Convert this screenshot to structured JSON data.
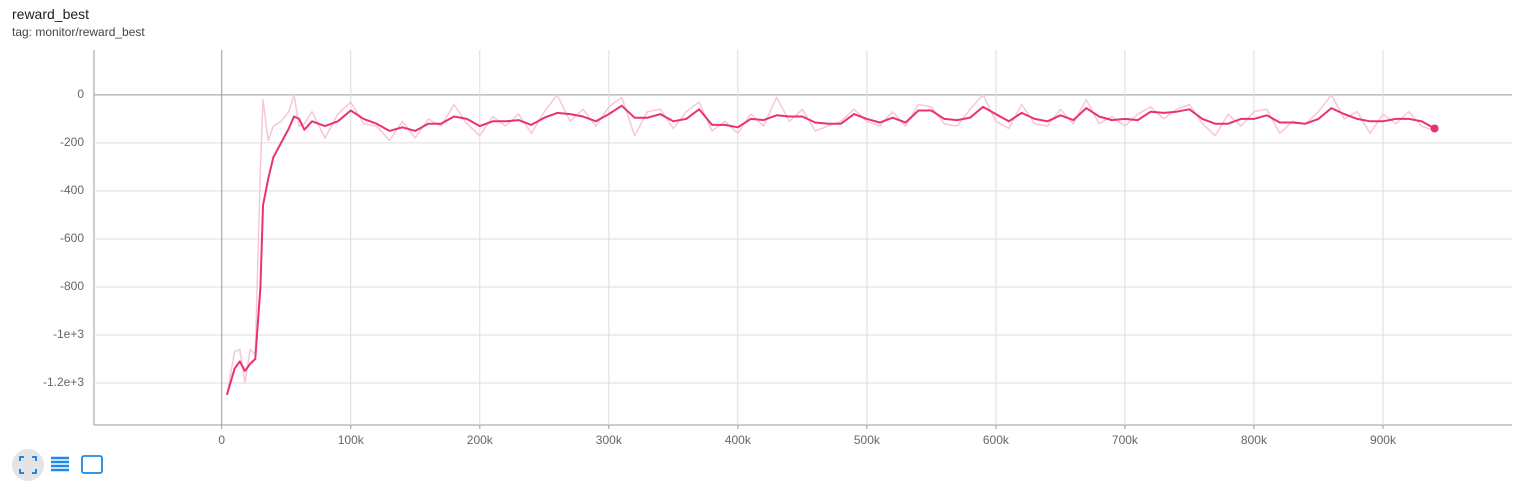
{
  "chart_data": {
    "type": "line",
    "title": "reward_best",
    "subtitle": "tag: monitor/reward_best",
    "x": [
      4000,
      10000,
      14000,
      18000,
      22000,
      26000,
      30000,
      32000,
      36000,
      40000,
      46000,
      52000,
      56000,
      60000,
      64000,
      70000,
      80000,
      90000,
      100000,
      110000,
      120000,
      130000,
      140000,
      150000,
      160000,
      170000,
      180000,
      190000,
      200000,
      210000,
      220000,
      230000,
      240000,
      250000,
      260000,
      270000,
      280000,
      290000,
      300000,
      310000,
      320000,
      330000,
      340000,
      350000,
      360000,
      370000,
      380000,
      390000,
      400000,
      410000,
      420000,
      430000,
      440000,
      450000,
      460000,
      470000,
      480000,
      490000,
      500000,
      510000,
      520000,
      530000,
      540000,
      550000,
      560000,
      570000,
      580000,
      590000,
      600000,
      610000,
      620000,
      630000,
      640000,
      650000,
      660000,
      670000,
      680000,
      690000,
      700000,
      710000,
      720000,
      730000,
      740000,
      750000,
      760000,
      770000,
      780000,
      790000,
      800000,
      810000,
      820000,
      830000,
      840000,
      850000,
      860000,
      870000,
      880000,
      890000,
      900000,
      910000,
      920000,
      930000,
      940000
    ],
    "series": [
      {
        "color": "#f8c6d7",
        "values": [
          -1250,
          -1070,
          -1060,
          -1200,
          -1060,
          -1080,
          -300,
          -20,
          -190,
          -130,
          -110,
          -70,
          0,
          -130,
          -120,
          -70,
          -180,
          -80,
          -30,
          -120,
          -130,
          -190,
          -110,
          -180,
          -100,
          -130,
          -40,
          -120,
          -170,
          -90,
          -130,
          -80,
          -160,
          -70,
          0,
          -110,
          -60,
          -130,
          -50,
          -10,
          -170,
          -70,
          -60,
          -140,
          -70,
          -30,
          -150,
          -110,
          -160,
          -80,
          -130,
          -10,
          -110,
          -60,
          -150,
          -130,
          -110,
          -60,
          -110,
          -130,
          -70,
          -130,
          -40,
          -50,
          -120,
          -130,
          -60,
          0,
          -110,
          -140,
          -40,
          -120,
          -130,
          -60,
          -120,
          -20,
          -120,
          -90,
          -130,
          -80,
          -50,
          -100,
          -60,
          -40,
          -120,
          -170,
          -80,
          -130,
          -70,
          -60,
          -160,
          -110,
          -120,
          -70,
          0,
          -100,
          -70,
          -160,
          -80,
          -120,
          -70,
          -130,
          -150
        ]
      },
      {
        "color": "#e8336e",
        "values": [
          -1250,
          -1140,
          -1110,
          -1150,
          -1120,
          -1100,
          -800,
          -460,
          -350,
          -260,
          -200,
          -140,
          -90,
          -100,
          -145,
          -110,
          -130,
          -110,
          -65,
          -100,
          -120,
          -150,
          -135,
          -150,
          -120,
          -120,
          -90,
          -100,
          -130,
          -110,
          -110,
          -105,
          -125,
          -95,
          -75,
          -80,
          -90,
          -110,
          -80,
          -45,
          -95,
          -95,
          -80,
          -110,
          -100,
          -60,
          -125,
          -125,
          -135,
          -100,
          -105,
          -85,
          -90,
          -90,
          -115,
          -120,
          -120,
          -80,
          -100,
          -115,
          -95,
          -115,
          -65,
          -65,
          -100,
          -105,
          -95,
          -50,
          -80,
          -110,
          -75,
          -100,
          -110,
          -85,
          -105,
          -55,
          -90,
          -105,
          -100,
          -105,
          -70,
          -75,
          -70,
          -60,
          -100,
          -120,
          -120,
          -100,
          -100,
          -85,
          -115,
          -115,
          -120,
          -100,
          -55,
          -80,
          -100,
          -110,
          -110,
          -100,
          -100,
          -110,
          -140
        ]
      }
    ],
    "xlim": [
      -99000,
      1000000
    ],
    "xticks": [
      0,
      {
        "value": 100000,
        "label": "100k"
      },
      {
        "value": 200000,
        "label": "200k"
      },
      {
        "value": 300000,
        "label": "300k"
      },
      {
        "value": 400000,
        "label": "400k"
      },
      {
        "value": 500000,
        "label": "500k"
      },
      {
        "value": 600000,
        "label": "600k"
      },
      {
        "value": 700000,
        "label": "700k"
      },
      {
        "value": 800000,
        "label": "800k"
      },
      {
        "value": 900000,
        "label": "900k"
      }
    ],
    "ylim": [
      -1375,
      187
    ],
    "yticks": [
      0,
      -200,
      -400,
      -600,
      -800,
      {
        "value": -1000,
        "label": "-1e+3"
      },
      {
        "value": -1200,
        "label": "-1.2e+3"
      }
    ],
    "grid": true
  }
}
